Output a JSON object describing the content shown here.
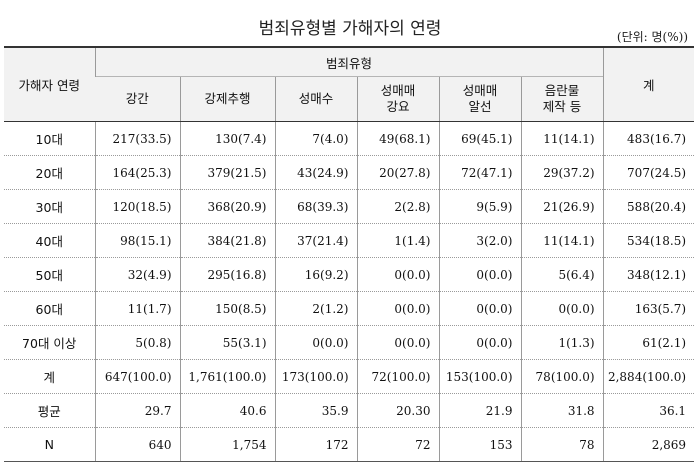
{
  "title": "범죄유형별 가해자의 연령",
  "unit": "(단위: 명(%))",
  "header": {
    "age_label": "가해자 연령",
    "group_label": "범죄유형",
    "total_label": "계",
    "types": [
      "강간",
      "강제추행",
      "성매수",
      "성매매\n강요",
      "성매매\n알선",
      "음란물\n제작 등"
    ]
  },
  "rows": [
    {
      "label": "10대",
      "values": [
        "217(33.5)",
        "130(7.4)",
        "7(4.0)",
        "49(68.1)",
        "69(45.1)",
        "11(14.1)",
        "483(16.7)"
      ]
    },
    {
      "label": "20대",
      "values": [
        "164(25.3)",
        "379(21.5)",
        "43(24.9)",
        "20(27.8)",
        "72(47.1)",
        "29(37.2)",
        "707(24.5)"
      ]
    },
    {
      "label": "30대",
      "values": [
        "120(18.5)",
        "368(20.9)",
        "68(39.3)",
        "2(2.8)",
        "9(5.9)",
        "21(26.9)",
        "588(20.4)"
      ]
    },
    {
      "label": "40대",
      "values": [
        "98(15.1)",
        "384(21.8)",
        "37(21.4)",
        "1(1.4)",
        "3(2.0)",
        "11(14.1)",
        "534(18.5)"
      ]
    },
    {
      "label": "50대",
      "values": [
        "32(4.9)",
        "295(16.8)",
        "16(9.2)",
        "0(0.0)",
        "0(0.0)",
        "5(6.4)",
        "348(12.1)"
      ]
    },
    {
      "label": "60대",
      "values": [
        "11(1.7)",
        "150(8.5)",
        "2(1.2)",
        "0(0.0)",
        "0(0.0)",
        "0(0.0)",
        "163(5.7)"
      ]
    },
    {
      "label": "70대 이상",
      "values": [
        "5(0.8)",
        "55(3.1)",
        "0(0.0)",
        "0(0.0)",
        "0(0.0)",
        "1(1.3)",
        "61(2.1)"
      ]
    },
    {
      "label": "계",
      "values": [
        "647(100.0)",
        "1,761(100.0)",
        "173(100.0)",
        "72(100.0)",
        "153(100.0)",
        "78(100.0)",
        "2,884(100.0)"
      ]
    },
    {
      "label": "평균",
      "values": [
        "29.7",
        "40.6",
        "35.9",
        "20.30",
        "21.9",
        "31.8",
        "36.1"
      ]
    },
    {
      "label": "N",
      "values": [
        "640",
        "1,754",
        "172",
        "72",
        "153",
        "78",
        "2,869"
      ]
    }
  ]
}
